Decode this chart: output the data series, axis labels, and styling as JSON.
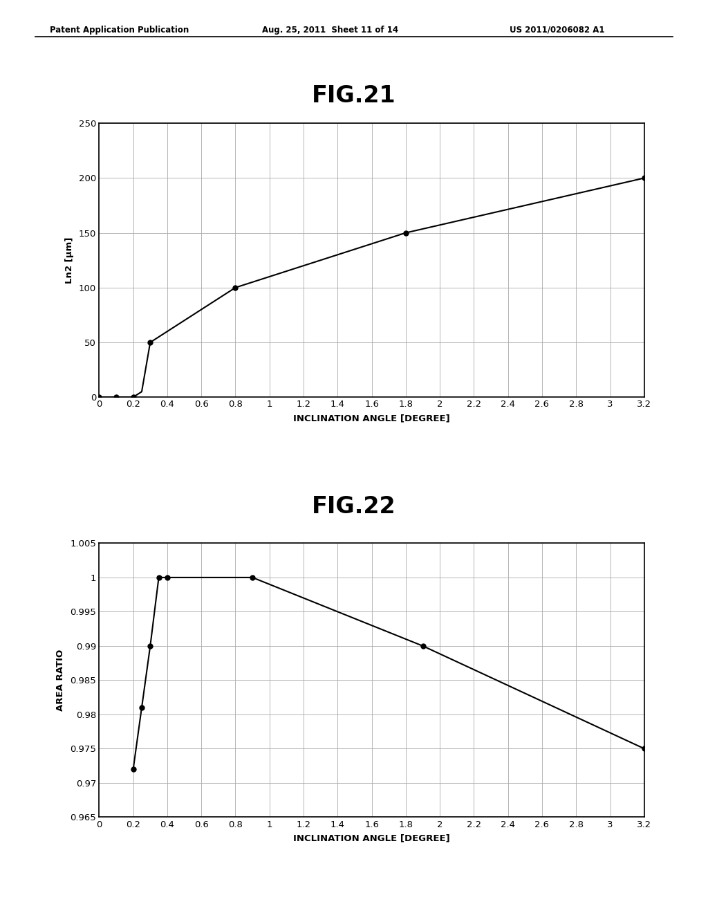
{
  "header_left": "Patent Application Publication",
  "header_mid": "Aug. 25, 2011  Sheet 11 of 14",
  "header_right": "US 2011/0206082 A1",
  "fig21": {
    "title": "FIG.21",
    "x": [
      0,
      0.1,
      0.2,
      0.25,
      0.3,
      0.8,
      1.8,
      3.2
    ],
    "y": [
      0,
      0,
      0,
      5,
      50,
      100,
      150,
      200
    ],
    "xlabel": "INCLINATION ANGLE [DEGREE]",
    "ylabel": "Ln2 [μm]",
    "xlim": [
      0,
      3.2
    ],
    "ylim": [
      0,
      250
    ],
    "xticks": [
      0,
      0.2,
      0.4,
      0.6,
      0.8,
      1.0,
      1.2,
      1.4,
      1.6,
      1.8,
      2.0,
      2.2,
      2.4,
      2.6,
      2.8,
      3.0,
      3.2
    ],
    "xtick_labels": [
      "0",
      "0.2",
      "0.4",
      "0.6",
      "0.8",
      "1",
      "1.2",
      "1.4",
      "1.6",
      "1.8",
      "2",
      "2.2",
      "2.4",
      "2.6",
      "2.8",
      "3",
      "3.2"
    ],
    "yticks": [
      0,
      50,
      100,
      150,
      200,
      250
    ],
    "ytick_labels": [
      "0",
      "50",
      "100",
      "150",
      "200",
      "250"
    ],
    "marker_x": [
      0,
      0.1,
      0.2,
      0.3,
      0.8,
      1.8,
      3.2
    ],
    "marker_y": [
      0,
      0,
      0,
      50,
      100,
      150,
      200
    ]
  },
  "fig22": {
    "title": "FIG.22",
    "x": [
      0.2,
      0.25,
      0.3,
      0.35,
      0.4,
      0.9,
      1.9,
      3.2
    ],
    "y": [
      0.972,
      0.981,
      0.99,
      1.0,
      1.0,
      1.0,
      0.99,
      0.975
    ],
    "xlabel": "INCLINATION ANGLE [DEGREE]",
    "ylabel": "AREA RATIO",
    "xlim": [
      0,
      3.2
    ],
    "ylim": [
      0.965,
      1.005
    ],
    "xticks": [
      0,
      0.2,
      0.4,
      0.6,
      0.8,
      1.0,
      1.2,
      1.4,
      1.6,
      1.8,
      2.0,
      2.2,
      2.4,
      2.6,
      2.8,
      3.0,
      3.2
    ],
    "xtick_labels": [
      "0",
      "0.2",
      "0.4",
      "0.6",
      "0.8",
      "1",
      "1.2",
      "1.4",
      "1.6",
      "1.8",
      "2",
      "2.2",
      "2.4",
      "2.6",
      "2.8",
      "3",
      "3.2"
    ],
    "yticks": [
      0.965,
      0.97,
      0.975,
      0.98,
      0.985,
      0.99,
      0.995,
      1.0,
      1.005
    ],
    "ytick_labels": [
      "0.965",
      "0.97",
      "0.975",
      "0.98",
      "0.985",
      "0.99",
      "0.995",
      "1",
      "1.005"
    ],
    "marker_x": [
      0.2,
      0.25,
      0.3,
      0.35,
      0.4,
      0.9,
      1.9,
      3.2
    ],
    "marker_y": [
      0.972,
      0.981,
      0.99,
      1.0,
      1.0,
      1.0,
      0.99,
      0.975
    ]
  },
  "bg_color": "#ffffff",
  "line_color": "#000000",
  "grid_color": "#aaaaaa",
  "font_color": "#000000"
}
